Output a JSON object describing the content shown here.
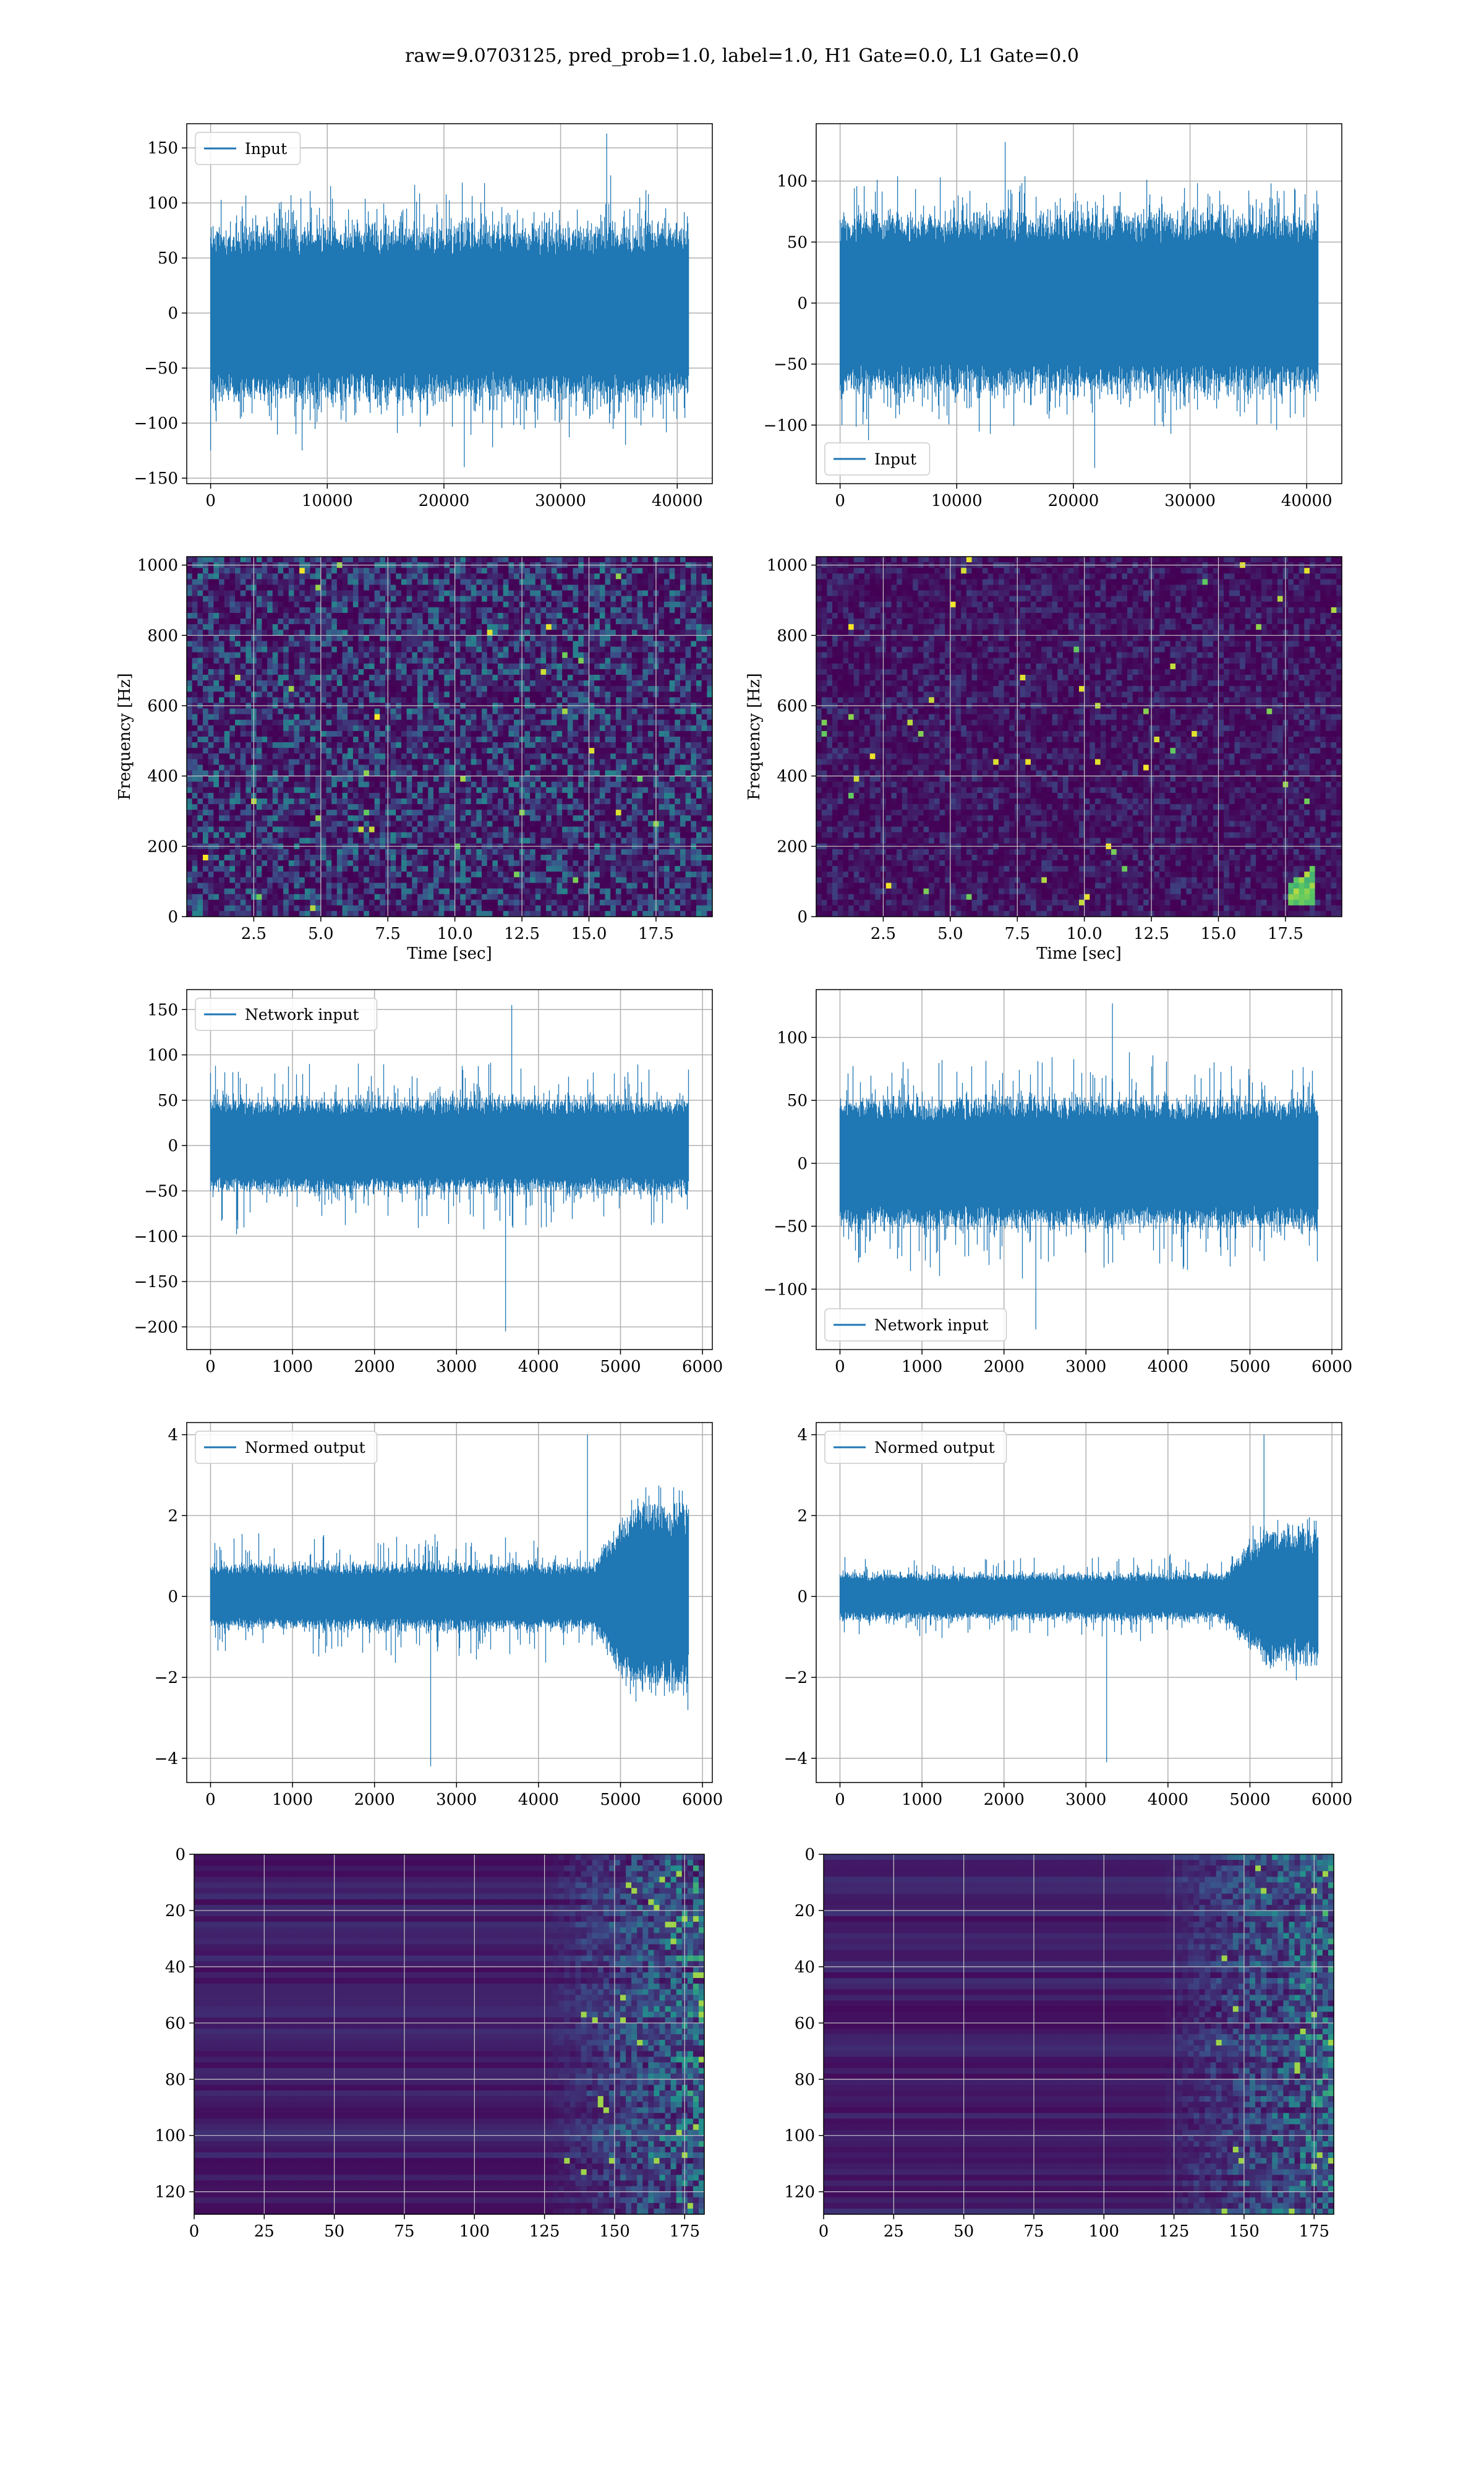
{
  "title": "raw=9.0703125, pred_prob=1.0, label=1.0, H1 Gate=0.0, L1 Gate=0.0",
  "colors": {
    "line": "#1f77b4",
    "grid": "#b0b0b0",
    "viridis_low": "#440154",
    "viridis_mid": "#21918c",
    "viridis_high": "#fde725"
  },
  "chart_data": [
    {
      "id": "row1-left",
      "type": "line",
      "legend": "Input",
      "legend_loc": "upper-left",
      "x_range": [
        0,
        40960
      ],
      "xlim": [
        -2048,
        43008
      ],
      "ylim": [
        -155,
        172
      ],
      "xticks": [
        0,
        10000,
        20000,
        30000,
        40000
      ],
      "yticks": [
        -150,
        -100,
        -50,
        0,
        50,
        100,
        150
      ],
      "envelope": {
        "core": 70,
        "spike": 110,
        "max": 163,
        "min": -140
      },
      "xlabel": "",
      "ylabel": ""
    },
    {
      "id": "row1-right",
      "type": "line",
      "legend": "Input",
      "legend_loc": "lower-left",
      "x_range": [
        0,
        40960
      ],
      "xlim": [
        -2048,
        43008
      ],
      "ylim": [
        -148,
        147
      ],
      "xticks": [
        0,
        10000,
        20000,
        30000,
        40000
      ],
      "yticks": [
        -100,
        -50,
        0,
        50,
        100
      ],
      "envelope": {
        "core": 65,
        "spike": 100,
        "max": 132,
        "min": -135
      },
      "xlabel": "",
      "ylabel": ""
    },
    {
      "id": "row2-left",
      "type": "heatmap",
      "xlim": [
        0,
        19.6
      ],
      "ylim": [
        0,
        1024
      ],
      "xticks": [
        2.5,
        5.0,
        7.5,
        10.0,
        12.5,
        15.0,
        17.5
      ],
      "yticks": [
        0,
        200,
        400,
        600,
        800,
        1000
      ],
      "xlabel": "Time [sec]",
      "ylabel": "Frequency [Hz]",
      "colormap": "viridis",
      "noise_level": 0.45
    },
    {
      "id": "row2-right",
      "type": "heatmap",
      "xlim": [
        0,
        19.6
      ],
      "ylim": [
        0,
        1024
      ],
      "xticks": [
        2.5,
        5.0,
        7.5,
        10.0,
        12.5,
        15.0,
        17.5
      ],
      "yticks": [
        0,
        200,
        400,
        600,
        800,
        1000
      ],
      "xlabel": "Time [sec]",
      "ylabel": "Frequency [Hz]",
      "colormap": "viridis",
      "noise_level": 0.2,
      "chirp": {
        "t": 18.0,
        "f_low": 30,
        "f_high": 120
      }
    },
    {
      "id": "row3-left",
      "type": "line",
      "legend": "Network input",
      "legend_loc": "upper-left",
      "x_range": [
        0,
        5830
      ],
      "xlim": [
        -290,
        6120
      ],
      "ylim": [
        -225,
        172
      ],
      "xticks": [
        0,
        1000,
        2000,
        3000,
        4000,
        5000,
        6000
      ],
      "yticks": [
        -200,
        -150,
        -100,
        -50,
        0,
        50,
        100,
        150
      ],
      "envelope": {
        "core": 45,
        "spike": 90,
        "max": 155,
        "min": -205
      },
      "xlabel": "",
      "ylabel": ""
    },
    {
      "id": "row3-right",
      "type": "line",
      "legend": "Network input",
      "legend_loc": "lower-left",
      "x_range": [
        0,
        5830
      ],
      "xlim": [
        -290,
        6120
      ],
      "ylim": [
        -148,
        138
      ],
      "xticks": [
        0,
        1000,
        2000,
        3000,
        4000,
        5000,
        6000
      ],
      "yticks": [
        -100,
        -50,
        0,
        50,
        100
      ],
      "envelope": {
        "core": 45,
        "spike": 85,
        "max": 127,
        "min": -132
      },
      "xlabel": "",
      "ylabel": ""
    },
    {
      "id": "row4-left",
      "type": "line",
      "legend": "Normed output",
      "legend_loc": "upper-left",
      "x_range": [
        0,
        5830
      ],
      "xlim": [
        -290,
        6120
      ],
      "ylim": [
        -4.6,
        4.3
      ],
      "xticks": [
        0,
        1000,
        2000,
        3000,
        4000,
        5000,
        6000
      ],
      "yticks": [
        -4,
        -2,
        0,
        2,
        4
      ],
      "envelope": {
        "core": 0.7,
        "spike": 1.5,
        "max": 4.0,
        "min": -4.2,
        "burst_start": 4700
      },
      "xlabel": "",
      "ylabel": ""
    },
    {
      "id": "row4-right",
      "type": "line",
      "legend": "Normed output",
      "legend_loc": "upper-left",
      "x_range": [
        0,
        5830
      ],
      "xlim": [
        -290,
        6120
      ],
      "ylim": [
        -4.6,
        4.3
      ],
      "xticks": [
        0,
        1000,
        2000,
        3000,
        4000,
        5000,
        6000
      ],
      "yticks": [
        -4,
        -2,
        0,
        2,
        4
      ],
      "envelope": {
        "core": 0.5,
        "spike": 1.0,
        "max": 4.0,
        "min": -4.1,
        "burst_start": 4700
      },
      "xlabel": "",
      "ylabel": ""
    },
    {
      "id": "row5-left",
      "type": "heatmap",
      "xlim": [
        0,
        182
      ],
      "ylim": [
        128,
        0
      ],
      "xticks": [
        0,
        25,
        50,
        75,
        100,
        125,
        150,
        175
      ],
      "yticks": [
        0,
        20,
        40,
        60,
        80,
        100,
        120
      ],
      "xlabel": "",
      "ylabel": "",
      "colormap": "viridis",
      "activity_start": 125
    },
    {
      "id": "row5-right",
      "type": "heatmap",
      "xlim": [
        0,
        182
      ],
      "ylim": [
        128,
        0
      ],
      "xticks": [
        0,
        25,
        50,
        75,
        100,
        125,
        150,
        175
      ],
      "yticks": [
        0,
        20,
        40,
        60,
        80,
        100,
        120
      ],
      "xlabel": "",
      "ylabel": "",
      "colormap": "viridis",
      "activity_start": 120
    }
  ]
}
